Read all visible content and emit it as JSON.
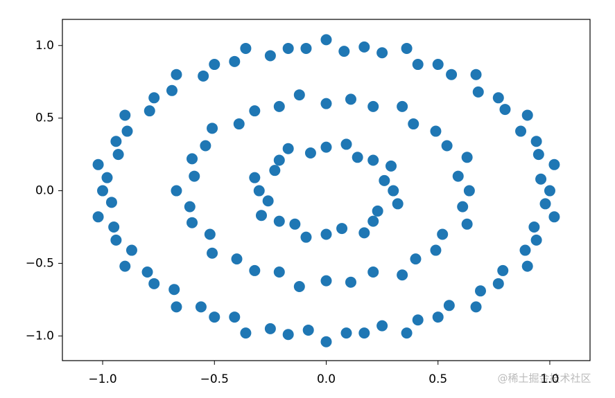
{
  "chart_data": {
    "type": "scatter",
    "color": "#1f77b4",
    "xlim": [
      -1.18,
      1.18
    ],
    "ylim": [
      -1.17,
      1.18
    ],
    "xticks": [
      {
        "value": -1.0,
        "label": "−1.0"
      },
      {
        "value": -0.5,
        "label": "−0.5"
      },
      {
        "value": 0.0,
        "label": "0.0"
      },
      {
        "value": 0.5,
        "label": "0.5"
      },
      {
        "value": 1.0,
        "label": "1.0"
      }
    ],
    "yticks": [
      {
        "value": -1.0,
        "label": "−1.0"
      },
      {
        "value": -0.5,
        "label": "−0.5"
      },
      {
        "value": 0.0,
        "label": "0.0"
      },
      {
        "value": 0.5,
        "label": "0.5"
      },
      {
        "value": 1.0,
        "label": "1.0"
      }
    ],
    "x": [
      1.0,
      0.96,
      1.02,
      0.95,
      0.94,
      0.87,
      0.9,
      0.8,
      0.77,
      0.68,
      0.67,
      0.56,
      0.5,
      0.41,
      0.36,
      0.25,
      0.17,
      0.08,
      0.0,
      -0.09,
      -0.17,
      -0.25,
      -0.36,
      -0.41,
      -0.5,
      -0.55,
      -0.67,
      -0.69,
      -0.77,
      -0.79,
      -0.9,
      -0.89,
      -0.94,
      -0.93,
      -1.02,
      -0.98,
      -1.0,
      -0.96,
      -1.02,
      -0.95,
      -0.94,
      -0.87,
      -0.9,
      -0.8,
      -0.77,
      -0.68,
      -0.67,
      -0.56,
      -0.5,
      -0.41,
      -0.36,
      -0.25,
      -0.17,
      -0.08,
      0.0,
      0.09,
      0.17,
      0.25,
      0.36,
      0.41,
      0.5,
      0.55,
      0.67,
      0.69,
      0.77,
      0.79,
      0.9,
      0.89,
      0.94,
      0.93,
      1.02,
      0.98,
      0.64,
      0.59,
      0.63,
      0.54,
      0.49,
      0.39,
      0.34,
      0.21,
      0.11,
      0.0,
      -0.12,
      -0.21,
      -0.32,
      -0.39,
      -0.51,
      -0.54,
      -0.6,
      -0.59,
      -0.67,
      -0.61,
      -0.6,
      -0.52,
      -0.51,
      -0.4,
      -0.32,
      -0.21,
      -0.12,
      0.0,
      0.11,
      0.21,
      0.34,
      0.4,
      0.49,
      0.52,
      0.63,
      0.61,
      0.3,
      0.26,
      0.29,
      0.21,
      0.14,
      0.09,
      0.0,
      -0.07,
      -0.17,
      -0.21,
      -0.23,
      -0.32,
      -0.3,
      -0.26,
      -0.29,
      -0.21,
      -0.14,
      -0.09,
      0.0,
      0.07,
      0.17,
      0.21,
      0.23,
      0.32
    ],
    "values": [
      0.0,
      0.08,
      0.18,
      0.25,
      0.34,
      0.41,
      0.52,
      0.56,
      0.64,
      0.68,
      0.8,
      0.8,
      0.87,
      0.87,
      0.98,
      0.95,
      0.99,
      0.96,
      1.04,
      0.98,
      0.98,
      0.93,
      0.98,
      0.89,
      0.87,
      0.79,
      0.8,
      0.69,
      0.64,
      0.55,
      0.52,
      0.41,
      0.34,
      0.25,
      0.18,
      0.09,
      0.0,
      -0.08,
      -0.18,
      -0.25,
      -0.34,
      -0.41,
      -0.52,
      -0.56,
      -0.64,
      -0.68,
      -0.8,
      -0.8,
      -0.87,
      -0.87,
      -0.98,
      -0.95,
      -0.99,
      -0.96,
      -1.04,
      -0.98,
      -0.98,
      -0.93,
      -0.98,
      -0.89,
      -0.87,
      -0.79,
      -0.8,
      -0.69,
      -0.64,
      -0.55,
      -0.52,
      -0.41,
      -0.34,
      -0.25,
      -0.18,
      -0.09,
      0.0,
      0.1,
      0.23,
      0.31,
      0.41,
      0.46,
      0.58,
      0.58,
      0.63,
      0.6,
      0.66,
      0.58,
      0.55,
      0.46,
      0.43,
      0.31,
      0.22,
      0.1,
      0.0,
      -0.11,
      -0.22,
      -0.3,
      -0.43,
      -0.47,
      -0.55,
      -0.56,
      -0.66,
      -0.62,
      -0.63,
      -0.56,
      -0.58,
      -0.47,
      -0.41,
      -0.3,
      -0.23,
      -0.11,
      0.0,
      0.07,
      0.17,
      0.21,
      0.23,
      0.32,
      0.3,
      0.26,
      0.29,
      0.21,
      0.14,
      0.09,
      0.0,
      -0.07,
      -0.17,
      -0.21,
      -0.23,
      -0.32,
      -0.3,
      -0.26,
      -0.29,
      -0.21,
      -0.14,
      -0.09
    ],
    "watermark": "@稀土掘金技术社区"
  }
}
